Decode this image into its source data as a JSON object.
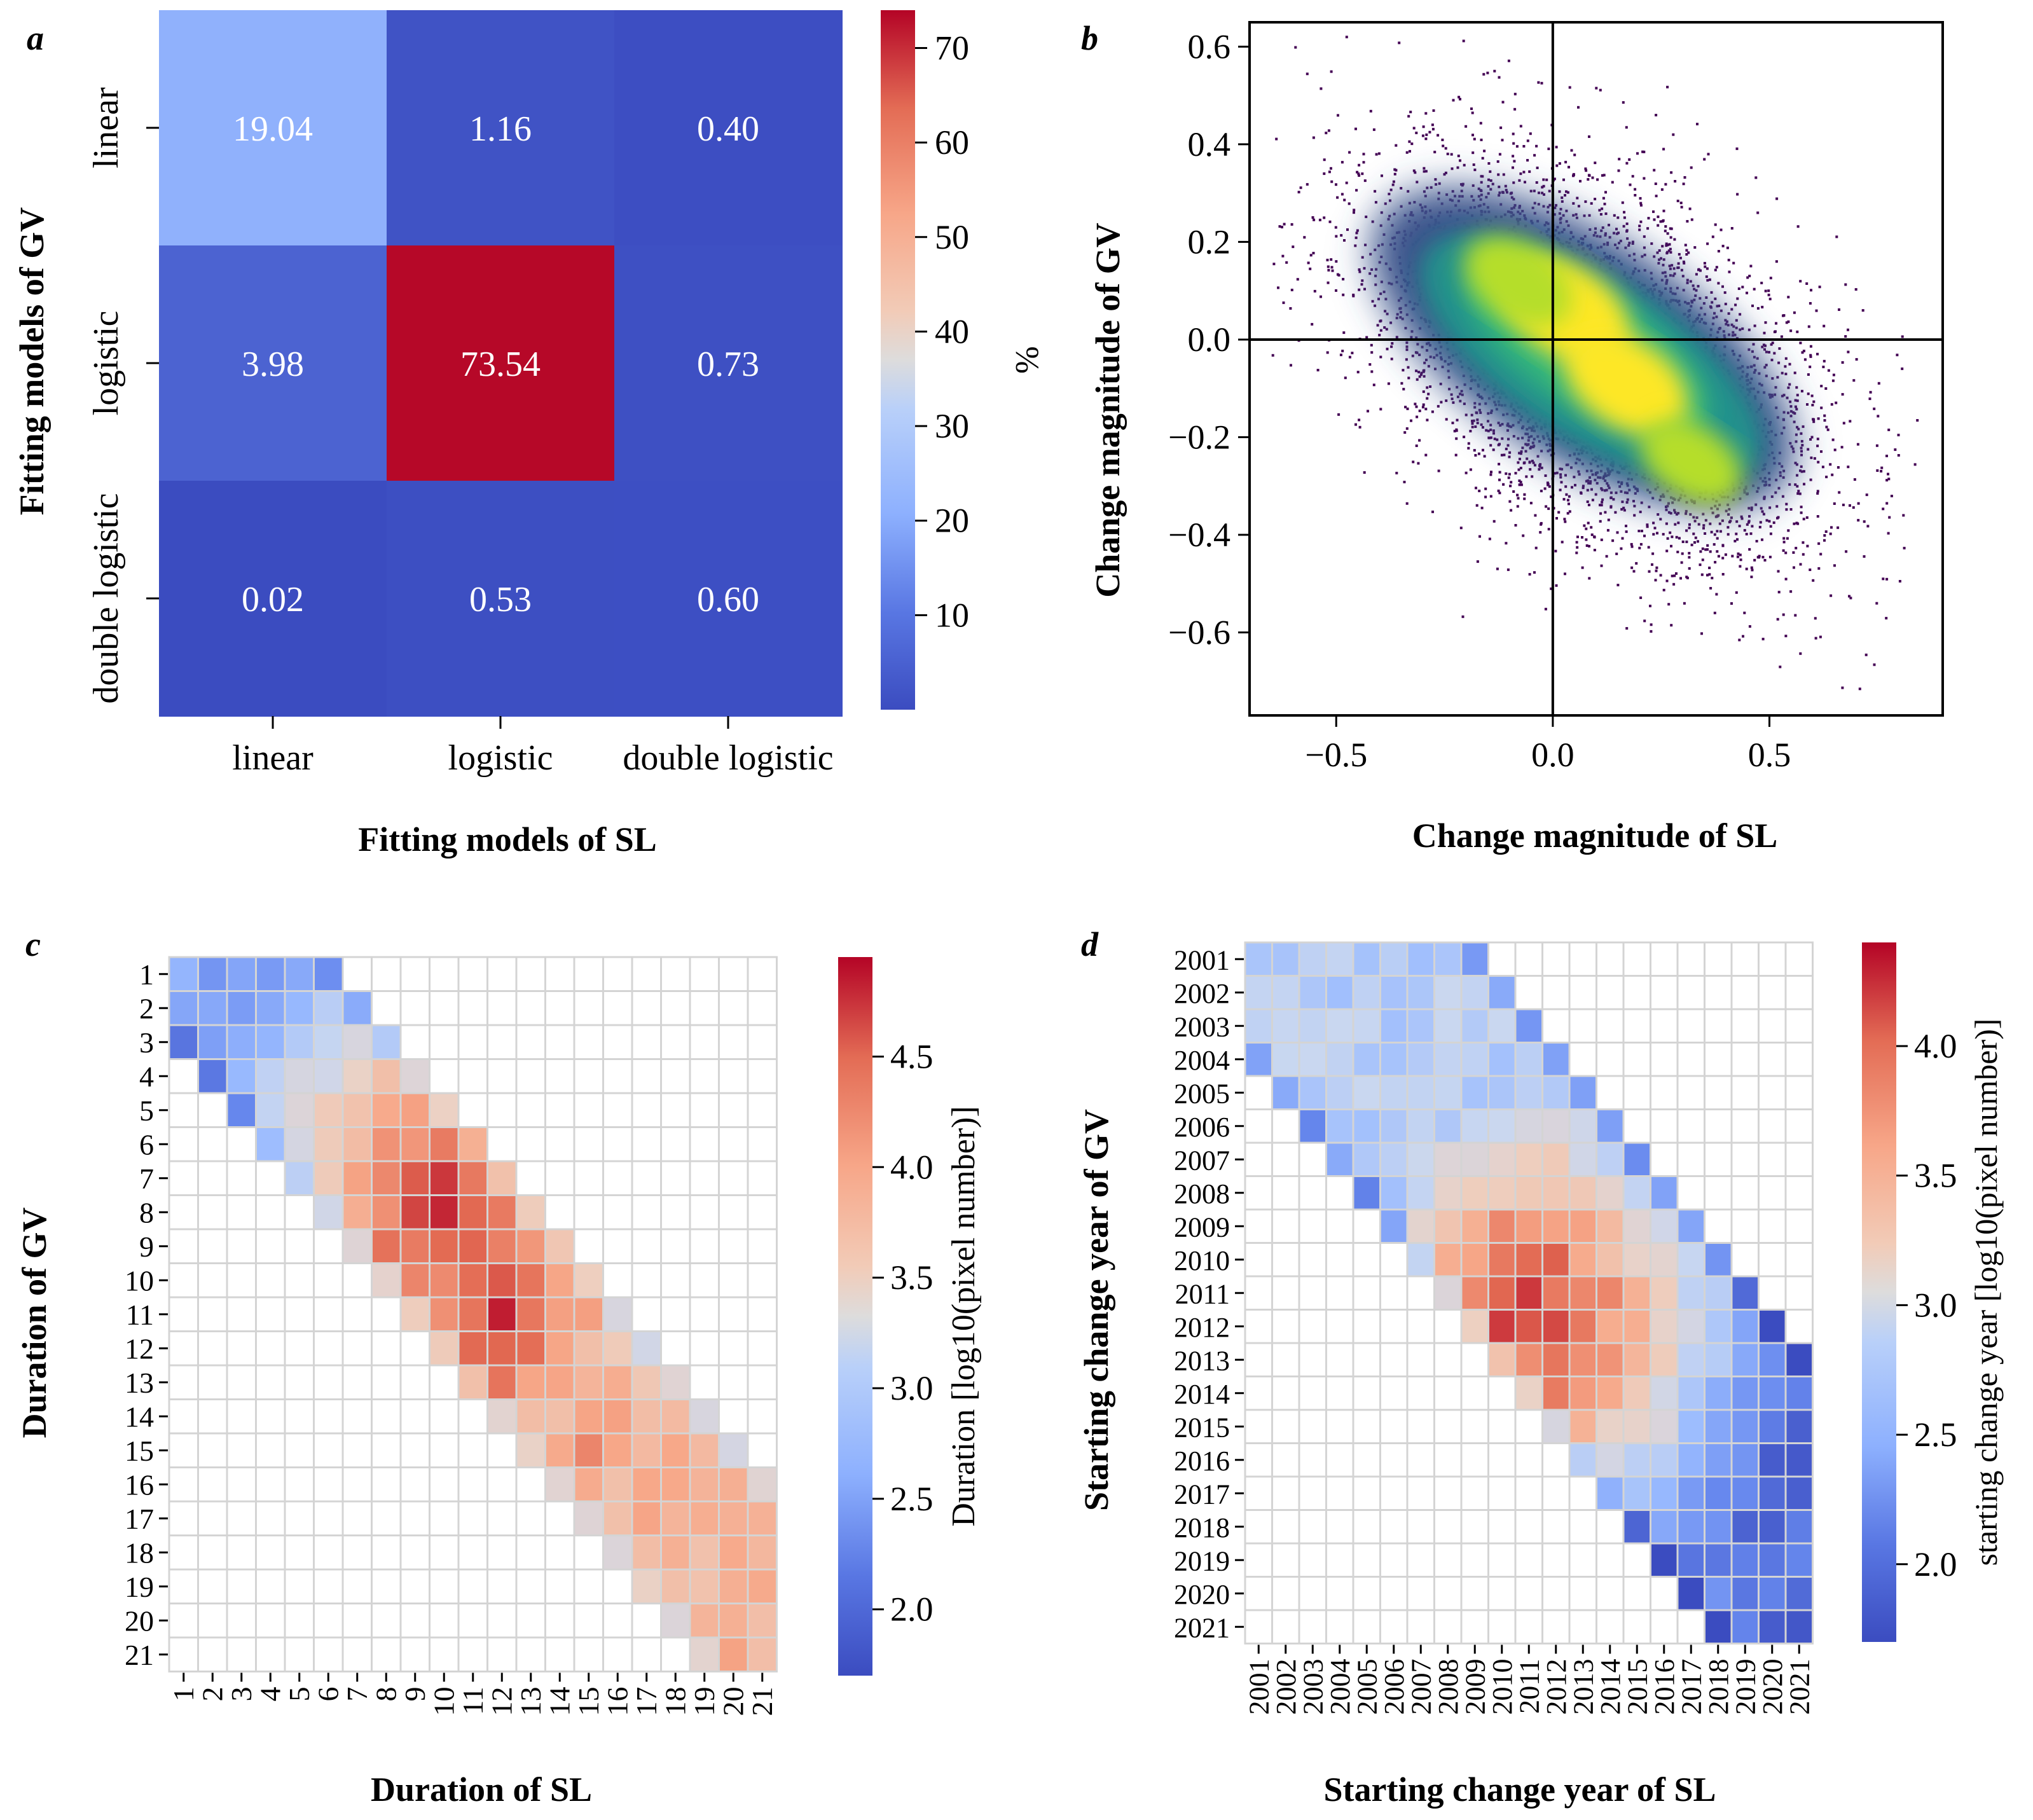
{
  "panel_labels": {
    "a": "a",
    "b": "b",
    "c": "c",
    "d": "d"
  },
  "colormap": [
    "#3b4cc0",
    "#6788ee",
    "#9abbff",
    "#c9d7f0",
    "#edd1c2",
    "#f7a889",
    "#e26952",
    "#b40426"
  ],
  "chart_data": [
    {
      "id": "a",
      "type": "heatmap",
      "xlabel": "Fitting models of SL",
      "ylabel": "Fitting models of GV",
      "x_categories": [
        "linear",
        "logistic",
        "double logistic"
      ],
      "y_categories": [
        "linear",
        "logistic",
        "double logistic"
      ],
      "values": [
        [
          19.04,
          1.16,
          0.4
        ],
        [
          3.98,
          73.54,
          0.73
        ],
        [
          0.02,
          0.53,
          0.6
        ]
      ],
      "value_labels": [
        [
          "19.04",
          "1.16",
          "0.40"
        ],
        [
          "3.98",
          "73.54",
          "0.73"
        ],
        [
          "0.02",
          "0.53",
          "0.60"
        ]
      ],
      "colorbar": {
        "label": "%",
        "vmin": 0,
        "vmax": 74,
        "ticks": [
          "10",
          "20",
          "30",
          "40",
          "50",
          "60",
          "70"
        ]
      }
    },
    {
      "id": "b",
      "type": "scatter",
      "description_style": "density scatter (viridis)",
      "xlabel": "Change magnitude of SL",
      "ylabel": "Change magnitude of GV",
      "xlim": [
        -0.7,
        0.9
      ],
      "ylim": [
        -0.77,
        0.65
      ],
      "x_ticks": [
        "−0.5",
        "0.0",
        "0.5"
      ],
      "x_tick_values": [
        -0.5,
        0.0,
        0.5
      ],
      "y_ticks": [
        "0.6",
        "0.4",
        "0.2",
        "0.0",
        "−0.2",
        "−0.4",
        "−0.6"
      ],
      "y_tick_values": [
        0.6,
        0.4,
        0.2,
        0.0,
        -0.2,
        -0.4,
        -0.6
      ],
      "reference_lines": {
        "x": 0,
        "y": 0
      },
      "density_centers": [
        {
          "x": 0.03,
          "y": 0.06,
          "weight": 1.0
        },
        {
          "x": 0.17,
          "y": -0.09,
          "weight": 0.9
        },
        {
          "x": -0.08,
          "y": 0.12,
          "weight": 0.6
        },
        {
          "x": 0.32,
          "y": -0.25,
          "weight": 0.45
        }
      ]
    },
    {
      "id": "c",
      "type": "heatmap",
      "xlabel": "Duration of SL",
      "ylabel": "Duration of GV",
      "x_categories": [
        "1",
        "2",
        "3",
        "4",
        "5",
        "6",
        "7",
        "8",
        "9",
        "10",
        "11",
        "12",
        "13",
        "14",
        "15",
        "16",
        "17",
        "18",
        "19",
        "20",
        "21"
      ],
      "y_categories": [
        "1",
        "2",
        "3",
        "4",
        "5",
        "6",
        "7",
        "8",
        "9",
        "10",
        "11",
        "12",
        "13",
        "14",
        "15",
        "16",
        "17",
        "18",
        "19",
        "20",
        "21"
      ],
      "band": {
        "lower": -2,
        "upper": 5
      },
      "peaks": [
        {
          "x": 10,
          "y": 8,
          "value": 4.9
        },
        {
          "x": 12,
          "y": 11,
          "value": 4.8
        },
        {
          "x": 15,
          "y": 15,
          "value": 4.2
        }
      ],
      "colorbar": {
        "label": "Duration [log10(pixel number)]",
        "vmin": 1.7,
        "vmax": 4.95,
        "ticks": [
          "2.0",
          "2.5",
          "3.0",
          "3.5",
          "4.0",
          "4.5"
        ]
      }
    },
    {
      "id": "d",
      "type": "heatmap",
      "xlabel": "Starting change year of SL",
      "ylabel": "Starting change year of GV",
      "x_categories": [
        "2001",
        "2002",
        "2003",
        "2004",
        "2005",
        "2006",
        "2007",
        "2008",
        "2009",
        "2010",
        "2011",
        "2012",
        "2013",
        "2014",
        "2015",
        "2016",
        "2017",
        "2018",
        "2019",
        "2020",
        "2021"
      ],
      "y_categories": [
        "2001",
        "2002",
        "2003",
        "2004",
        "2005",
        "2006",
        "2007",
        "2008",
        "2009",
        "2010",
        "2011",
        "2012",
        "2013",
        "2014",
        "2015",
        "2016",
        "2017",
        "2018",
        "2019",
        "2020",
        "2021"
      ],
      "band": {
        "lower": -3,
        "upper": 8
      },
      "peaks": [
        {
          "x": "2011",
          "y": "2011",
          "value": 4.3
        },
        {
          "x": "2012",
          "y": "2012",
          "value": 4.3
        },
        {
          "x": "2010",
          "y": "2012",
          "value": 4.1
        }
      ],
      "colorbar": {
        "label": "starting change year [log10(pixel number)]",
        "vmin": 1.7,
        "vmax": 4.4,
        "ticks": [
          "2.0",
          "2.5",
          "3.0",
          "3.5",
          "4.0"
        ]
      }
    }
  ]
}
